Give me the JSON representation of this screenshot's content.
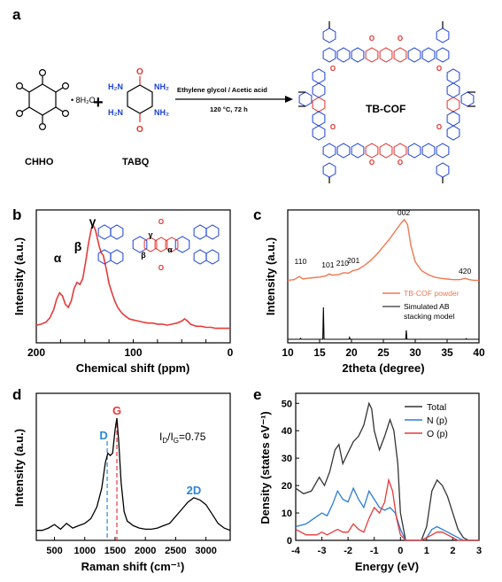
{
  "panel_a": {
    "letter": "a",
    "chho_label": "CHHO",
    "hydrate_label": "• 8H₂O",
    "plus": "+",
    "tabq_label": "TABQ",
    "arrow_top": "Ethylene glycol / Acetic acid",
    "arrow_bottom": "120 °C, 72 h",
    "product_label": "TB-COF"
  },
  "colors": {
    "red": "#e0302a",
    "blue": "#1a3fd6",
    "black": "#000000",
    "nmr_line": "#e53a3a",
    "xrd_exp": "#f07850",
    "raman_line": "#000000",
    "dashed_blue": "#2a86d8",
    "dashed_red": "#e53a3a",
    "dos_total": "#333333",
    "dos_n": "#2a7bd8",
    "dos_o": "#e53a3a"
  },
  "chart_data": [
    {
      "panel": "b",
      "type": "line",
      "xlabel": "Chemical shift (ppm)",
      "ylabel": "Intensity (a.u.)",
      "xlim": [
        200,
        0
      ],
      "x_reversed": true,
      "xticks": [
        "200",
        "175",
        "150",
        "125",
        "100",
        "75",
        "50",
        "25",
        "0"
      ],
      "yticks": [],
      "grid": false,
      "annotations": [
        {
          "text": "α",
          "x": 178
        },
        {
          "text": "β",
          "x": 157
        },
        {
          "text": "γ",
          "x": 142
        }
      ],
      "structure_labels": [
        "γ",
        "β",
        "α"
      ],
      "series": [
        {
          "x": [
            200,
            195,
            190,
            186,
            182,
            179,
            176,
            173,
            170,
            167,
            164,
            161,
            158,
            155,
            152,
            149,
            146,
            143,
            141,
            139,
            137,
            135,
            133,
            131,
            129,
            127,
            125,
            122,
            119,
            116,
            113,
            110,
            107,
            104,
            100,
            95,
            90,
            85,
            80,
            75,
            70,
            65,
            60,
            55,
            50,
            47,
            44,
            41,
            38,
            35,
            30,
            25,
            20,
            15,
            10,
            5,
            0
          ],
          "y": [
            0.05,
            0.06,
            0.08,
            0.12,
            0.2,
            0.3,
            0.36,
            0.33,
            0.25,
            0.22,
            0.28,
            0.4,
            0.46,
            0.44,
            0.5,
            0.66,
            0.84,
            0.98,
            1.0,
            0.96,
            0.88,
            0.8,
            0.74,
            0.72,
            0.64,
            0.55,
            0.45,
            0.36,
            0.28,
            0.22,
            0.18,
            0.15,
            0.13,
            0.11,
            0.1,
            0.09,
            0.08,
            0.07,
            0.07,
            0.06,
            0.06,
            0.05,
            0.06,
            0.07,
            0.09,
            0.11,
            0.09,
            0.06,
            0.05,
            0.04,
            0.04,
            0.03,
            0.03,
            0.02,
            0.02,
            0.02,
            0.02
          ]
        }
      ]
    },
    {
      "panel": "c",
      "type": "line",
      "xlabel": "2theta (degree)",
      "ylabel": "Intensity (a.u.)",
      "xlim": [
        10,
        40
      ],
      "xticks": [
        "10",
        "15",
        "20",
        "25",
        "30",
        "35",
        "40"
      ],
      "yticks": [],
      "grid": false,
      "legend_position": "right-middle",
      "peak_labels": [
        {
          "text": "110",
          "x": 12.0
        },
        {
          "text": "101",
          "x": 16.3
        },
        {
          "text": "210",
          "x": 18.6
        },
        {
          "text": "201",
          "x": 20.3
        },
        {
          "text": "002",
          "x": 28.2
        },
        {
          "text": "420",
          "x": 37.8
        }
      ],
      "series": [
        {
          "name": "TB-COF powder",
          "x": [
            10,
            11,
            11.8,
            12.4,
            13,
            14,
            15,
            16,
            16.5,
            17,
            18,
            18.8,
            19.5,
            20.2,
            21,
            22,
            23,
            24,
            25,
            26,
            27,
            27.8,
            28.3,
            28.8,
            29.3,
            30,
            31,
            32,
            33,
            34,
            35,
            36,
            37,
            37.8,
            38.5,
            39.2,
            40
          ],
          "y": [
            0.05,
            0.06,
            0.11,
            0.07,
            0.08,
            0.09,
            0.1,
            0.12,
            0.15,
            0.13,
            0.14,
            0.17,
            0.16,
            0.2,
            0.22,
            0.28,
            0.36,
            0.46,
            0.58,
            0.7,
            0.84,
            0.95,
            1.0,
            0.92,
            0.6,
            0.34,
            0.2,
            0.14,
            0.1,
            0.08,
            0.07,
            0.06,
            0.06,
            0.08,
            0.06,
            0.05,
            0.05
          ]
        },
        {
          "name": "Simulated AB stacking model",
          "x": [
            10,
            11.9,
            12,
            12.1,
            15.5,
            15.6,
            15.7,
            19.6,
            19.7,
            19.8,
            28.5,
            28.6,
            28.7,
            37.9,
            38,
            38.1,
            40
          ],
          "y": [
            0,
            0,
            0.03,
            0,
            0,
            1.0,
            0,
            0,
            0.06,
            0,
            0,
            0.28,
            0,
            0,
            0.02,
            0,
            0
          ]
        }
      ]
    },
    {
      "panel": "d",
      "type": "line",
      "xlabel": "Raman shift (cm⁻¹)",
      "ylabel": "Intensity (a.u.)",
      "xlim": [
        200,
        3400
      ],
      "xticks": [
        "500",
        "1000",
        "1500",
        "2000",
        "2500",
        "3000"
      ],
      "yticks": [],
      "grid": false,
      "annotations": [
        {
          "text": "D",
          "x": 1370
        },
        {
          "text": "G",
          "x": 1530
        },
        {
          "text": "2D",
          "x": 2800
        },
        {
          "text": "I",
          "sub": "D",
          "slash": "/I",
          "sub2": "G",
          "value": "=0.75"
        }
      ],
      "series": [
        {
          "x": [
            200,
            300,
            400,
            500,
            600,
            700,
            800,
            900,
            1000,
            1100,
            1200,
            1280,
            1340,
            1380,
            1420,
            1460,
            1500,
            1530,
            1560,
            1600,
            1650,
            1700,
            1800,
            1900,
            2000,
            2100,
            2200,
            2300,
            2400,
            2500,
            2600,
            2700,
            2800,
            2900,
            3000,
            3100,
            3200,
            3300,
            3400
          ],
          "y": [
            0.04,
            0.04,
            0.06,
            0.09,
            0.05,
            0.1,
            0.06,
            0.08,
            0.1,
            0.14,
            0.24,
            0.4,
            0.62,
            0.7,
            0.68,
            0.7,
            0.9,
            1.0,
            0.8,
            0.45,
            0.2,
            0.12,
            0.08,
            0.06,
            0.05,
            0.05,
            0.06,
            0.08,
            0.1,
            0.16,
            0.22,
            0.28,
            0.32,
            0.3,
            0.26,
            0.18,
            0.1,
            0.06,
            0.04
          ]
        }
      ]
    },
    {
      "panel": "e",
      "type": "line",
      "xlabel": "Energy (eV)",
      "ylabel": "Density (states eV⁻¹)",
      "xlim": [
        -4,
        3
      ],
      "ylim": [
        0,
        50
      ],
      "xticks": [
        "-4",
        "-3",
        "-2",
        "-1",
        "0",
        "1",
        "2",
        "3"
      ],
      "yticks": [
        "0",
        "10",
        "20",
        "30",
        "40",
        "50"
      ],
      "grid": false,
      "legend_position": "top-right",
      "series": [
        {
          "name": "Total",
          "x": [
            -4,
            -3.7,
            -3.4,
            -3.1,
            -2.9,
            -2.7,
            -2.5,
            -2.35,
            -2.2,
            -2.0,
            -1.8,
            -1.6,
            -1.4,
            -1.2,
            -1.1,
            -1.0,
            -0.8,
            -0.6,
            -0.4,
            -0.25,
            -0.1,
            0,
            0.2,
            0.5,
            0.8,
            1.0,
            1.2,
            1.4,
            1.6,
            1.8,
            2.0,
            2.2,
            2.4,
            2.6,
            2.8,
            3
          ],
          "y": [
            19,
            17,
            18,
            23,
            20,
            25,
            33,
            35,
            28,
            32,
            36,
            38,
            42,
            50,
            48,
            40,
            33,
            38,
            44,
            40,
            28,
            10,
            0,
            0,
            0,
            5,
            18,
            22,
            20,
            16,
            10,
            4,
            1,
            0,
            0,
            0
          ]
        },
        {
          "name": "N (p)",
          "x": [
            -4,
            -3.6,
            -3.3,
            -3.0,
            -2.8,
            -2.6,
            -2.4,
            -2.2,
            -2.0,
            -1.8,
            -1.6,
            -1.4,
            -1.2,
            -1.0,
            -0.8,
            -0.6,
            -0.4,
            -0.2,
            0,
            0.2,
            0.5,
            0.8,
            1.0,
            1.2,
            1.4,
            1.6,
            1.8,
            2.0,
            2.2,
            2.4,
            3
          ],
          "y": [
            5,
            6,
            8,
            10,
            9,
            13,
            18,
            15,
            14,
            19,
            15,
            12,
            18,
            15,
            12,
            11,
            12,
            10,
            4,
            0,
            0,
            0,
            1,
            4,
            5,
            4,
            3,
            2,
            1,
            0,
            0
          ]
        },
        {
          "name": "O (p)",
          "x": [
            -4,
            -3.6,
            -3.2,
            -3.0,
            -2.8,
            -2.6,
            -2.4,
            -2.2,
            -2.0,
            -1.8,
            -1.6,
            -1.4,
            -1.2,
            -1.0,
            -0.8,
            -0.6,
            -0.45,
            -0.3,
            -0.15,
            0,
            0.2,
            0.5,
            0.8,
            1.0,
            1.2,
            1.4,
            1.6,
            1.8,
            2.0,
            2.2,
            2.4,
            3
          ],
          "y": [
            4,
            2,
            2,
            3,
            2,
            3,
            4,
            3,
            3,
            6,
            4,
            3,
            8,
            12,
            10,
            14,
            22,
            18,
            8,
            2,
            0,
            0,
            0,
            1,
            2,
            3,
            3,
            2,
            1,
            0,
            0,
            0
          ]
        }
      ]
    }
  ]
}
